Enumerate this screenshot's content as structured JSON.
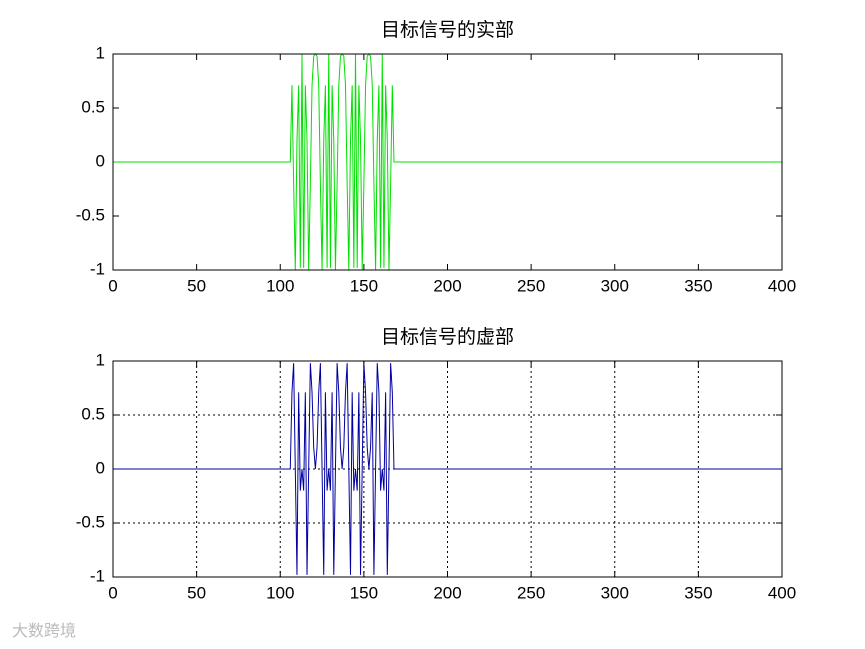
{
  "chart_data": [
    {
      "type": "line",
      "title": "目标信号的实部",
      "color": "#00e000",
      "grid": false,
      "x": [
        0,
        106,
        107,
        108,
        109,
        110,
        111,
        112,
        113,
        114,
        115,
        116,
        117,
        118,
        119,
        120,
        121,
        122,
        123,
        124,
        125,
        126,
        127,
        128,
        129,
        130,
        131,
        132,
        133,
        134,
        135,
        136,
        137,
        138,
        139,
        140,
        141,
        142,
        143,
        144,
        145,
        146,
        147,
        148,
        149,
        150,
        151,
        152,
        153,
        154,
        155,
        156,
        157,
        158,
        159,
        160,
        161,
        162,
        163,
        164,
        165,
        166,
        167,
        168,
        400
      ],
      "values": [
        0,
        0,
        0.71,
        -0.2,
        -1,
        0.2,
        0.71,
        -0.98,
        1,
        -0.98,
        0.71,
        0.2,
        -1,
        -0.2,
        0.71,
        0.98,
        1,
        0.98,
        0.71,
        -0.2,
        -1,
        0.2,
        0.71,
        -0.98,
        1,
        -0.98,
        0.71,
        0.2,
        -1,
        -0.2,
        0.71,
        0.98,
        1,
        0.98,
        0.71,
        -0.2,
        -1,
        0.2,
        0.71,
        -0.98,
        1,
        -0.98,
        0.71,
        0.2,
        -1,
        -0.2,
        0.71,
        0.98,
        1,
        0.98,
        0.71,
        -0.2,
        -1,
        0.2,
        0.71,
        -0.98,
        1,
        -0.98,
        0.71,
        0.2,
        -1,
        -0.2,
        0.71,
        0,
        0
      ],
      "xlim": [
        0,
        400
      ],
      "xticks": [
        0,
        50,
        100,
        150,
        200,
        250,
        300,
        350,
        400
      ],
      "ylim": [
        -1,
        1
      ],
      "yticks": [
        -1,
        -0.5,
        0,
        0.5,
        1
      ]
    },
    {
      "type": "line",
      "title": "目标信号的虚部",
      "color": "#0000a0",
      "grid": true,
      "x": [
        0,
        106,
        107,
        108,
        109,
        110,
        111,
        112,
        113,
        114,
        115,
        116,
        117,
        118,
        119,
        120,
        121,
        122,
        123,
        124,
        125,
        126,
        127,
        128,
        129,
        130,
        131,
        132,
        133,
        134,
        135,
        136,
        137,
        138,
        139,
        140,
        141,
        142,
        143,
        144,
        145,
        146,
        147,
        148,
        149,
        150,
        151,
        152,
        153,
        154,
        155,
        156,
        157,
        158,
        159,
        160,
        161,
        162,
        163,
        164,
        165,
        166,
        167,
        168,
        400
      ],
      "values": [
        0,
        0,
        0.71,
        0.98,
        0,
        -0.98,
        0.71,
        -0.2,
        0,
        -0.2,
        0.71,
        -0.98,
        0,
        0.98,
        0.71,
        0.2,
        0,
        0.2,
        0.71,
        0.98,
        0,
        -0.98,
        0.71,
        -0.2,
        0,
        -0.2,
        0.71,
        -0.98,
        0,
        0.98,
        0.71,
        0.2,
        0,
        0.2,
        0.71,
        0.98,
        0,
        -0.98,
        0.71,
        -0.2,
        0,
        -0.2,
        0.71,
        -0.98,
        0,
        0.98,
        0.71,
        0.2,
        0,
        0.2,
        0.71,
        -0.98,
        0,
        0.98,
        0.71,
        -0.2,
        0,
        -0.2,
        0.71,
        -0.98,
        0,
        0.98,
        0.71,
        0,
        0
      ],
      "xlim": [
        0,
        400
      ],
      "xticks": [
        0,
        50,
        100,
        150,
        200,
        250,
        300,
        350,
        400
      ],
      "ylim": [
        -1,
        1
      ],
      "yticks": [
        -1,
        -0.5,
        0,
        0.5,
        1
      ]
    }
  ],
  "watermark": "大数跨境"
}
